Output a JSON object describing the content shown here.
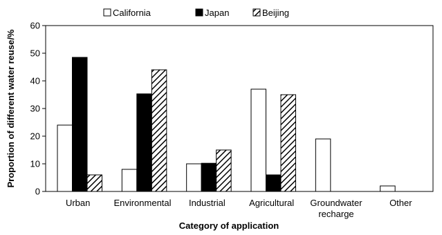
{
  "chart_data": {
    "type": "bar",
    "categories": [
      "Urban",
      "Environmental",
      "Industrial",
      "Agricultural",
      "Groundwater recharge",
      "Other"
    ],
    "category_lines": [
      [
        "Urban"
      ],
      [
        "Environmental"
      ],
      [
        "Industrial"
      ],
      [
        "Agricultural"
      ],
      [
        "Groundwater",
        "recharge"
      ],
      [
        "Other"
      ]
    ],
    "series": [
      {
        "name": "California",
        "values": [
          24,
          8,
          10,
          37,
          19,
          2
        ],
        "fill": "white"
      },
      {
        "name": "Japan",
        "values": [
          48.5,
          35.3,
          10.2,
          6,
          0,
          0
        ],
        "fill": "black"
      },
      {
        "name": "Beijing",
        "values": [
          6,
          44,
          15,
          35,
          0,
          0
        ],
        "fill": "hatch"
      }
    ],
    "xlabel": "Category of application",
    "ylabel": "Proportion of different water reuse/%",
    "ylim": [
      0,
      60
    ],
    "yticks": [
      0,
      10,
      20,
      30,
      40,
      50,
      60
    ],
    "legend_position": "top",
    "grid": false,
    "colors": {
      "bar_edge": "#000000",
      "black_fill": "#000000",
      "white_fill": "#ffffff"
    }
  }
}
